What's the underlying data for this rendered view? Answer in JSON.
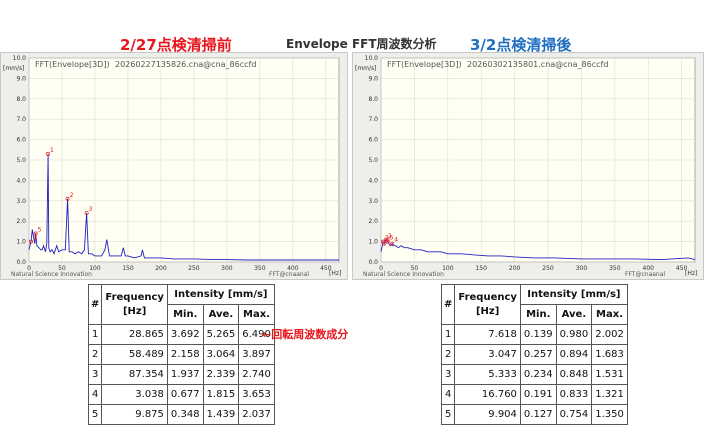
{
  "headings": {
    "left": "2/27点検清掃前",
    "center": "Envelope FFT周波数分析",
    "right": "3/2点検清掃後"
  },
  "note": "←回転周波数成分",
  "charts": {
    "left": {
      "title": "FFT(Envelope[3D])",
      "filename": "20260227135826.cna@cna_86ccfd",
      "yunit": "[mm/s]",
      "xunit": "[Hz]",
      "ylim": [
        0,
        10
      ],
      "xlim": [
        0,
        470
      ],
      "yticks": [
        "10.0",
        "9.0",
        "8.0",
        "7.0",
        "6.0",
        "5.0",
        "4.0",
        "3.0",
        "2.0",
        "1.0",
        "0.0"
      ],
      "xticks": [
        "0",
        "50",
        "100",
        "150",
        "200",
        "250",
        "300",
        "350",
        "400",
        "450"
      ],
      "footer_left": "Natural Science Innovation",
      "footer_right": "FFT@cnaanal",
      "peak_labels": [
        "1",
        "2",
        "3",
        "4",
        "5"
      ]
    },
    "right": {
      "title": "FFT(Envelope[3D])",
      "filename": "20260302135801.cna@cna_86ccfd",
      "yunit": "[mm/s]",
      "xunit": "[Hz]",
      "ylim": [
        0,
        10
      ],
      "xlim": [
        0,
        470
      ],
      "yticks": [
        "10.0",
        "9.0",
        "8.0",
        "7.0",
        "6.0",
        "5.0",
        "4.0",
        "3.0",
        "2.0",
        "1.0",
        "0.0"
      ],
      "xticks": [
        "0",
        "50",
        "100",
        "150",
        "200",
        "250",
        "300",
        "350",
        "400",
        "450"
      ],
      "footer_left": "Natural Science Innovation",
      "footer_right": "FFT@cnaanal",
      "peak_labels": [
        "1",
        "2",
        "3",
        "4",
        "5"
      ]
    }
  },
  "chart_data": [
    {
      "type": "line",
      "title": "FFT(Envelope[3D])",
      "xlabel": "[Hz]",
      "ylabel": "[mm/s]",
      "xlim": [
        0,
        470
      ],
      "ylim": [
        0,
        10
      ],
      "series": [
        {
          "x": [
            0,
            3,
            5,
            7,
            9,
            10,
            12,
            15,
            18,
            20,
            22,
            25,
            27,
            28.9,
            30,
            32,
            35,
            38,
            42,
            45,
            50,
            55,
            58.5,
            61,
            65,
            70,
            75,
            80,
            84,
            87.4,
            90,
            95,
            100,
            105,
            110,
            115,
            118,
            122,
            130,
            140,
            143,
            146,
            150,
            160,
            170,
            172,
            175,
            180,
            200,
            220,
            250,
            280,
            300,
            330,
            360,
            400,
            440,
            470
          ],
          "y": [
            0.6,
            1.0,
            1.6,
            1.2,
            0.9,
            1.4,
            0.8,
            0.7,
            0.6,
            0.6,
            0.8,
            0.5,
            0.9,
            5.3,
            0.7,
            0.5,
            0.6,
            0.4,
            0.8,
            0.5,
            0.6,
            0.6,
            3.1,
            0.5,
            0.5,
            0.4,
            0.5,
            0.4,
            0.6,
            2.4,
            0.4,
            0.4,
            0.3,
            0.3,
            0.3,
            0.6,
            1.1,
            0.3,
            0.3,
            0.3,
            0.7,
            0.3,
            0.3,
            0.2,
            0.3,
            0.6,
            0.2,
            0.2,
            0.2,
            0.15,
            0.15,
            0.12,
            0.12,
            0.1,
            0.1,
            0.1,
            0.1,
            0.1
          ]
        }
      ]
    },
    {
      "type": "line",
      "title": "FFT(Envelope[3D])",
      "xlabel": "[Hz]",
      "ylabel": "[mm/s]",
      "xlim": [
        0,
        470
      ],
      "ylim": [
        0,
        10
      ],
      "series": [
        {
          "x": [
            0,
            2,
            3,
            5,
            7.6,
            9.9,
            12,
            14,
            16.8,
            18,
            22,
            26,
            30,
            35,
            40,
            50,
            60,
            70,
            80,
            90,
            100,
            120,
            140,
            160,
            180,
            200,
            230,
            260,
            300,
            340,
            380,
            420,
            460,
            470
          ],
          "y": [
            0.5,
            0.8,
            1.0,
            0.9,
            1.1,
            1.0,
            0.9,
            0.8,
            0.9,
            0.8,
            0.8,
            0.7,
            0.8,
            0.7,
            0.7,
            0.6,
            0.6,
            0.5,
            0.5,
            0.5,
            0.4,
            0.4,
            0.35,
            0.3,
            0.3,
            0.25,
            0.2,
            0.2,
            0.15,
            0.15,
            0.15,
            0.12,
            0.2,
            0.12
          ]
        }
      ]
    }
  ],
  "tables": {
    "left": {
      "head_idx": "#",
      "head_freq": "Frequency",
      "head_freq_unit": "[Hz]",
      "head_intensity": "Intensity [mm/s]",
      "head_min": "Min.",
      "head_ave": "Ave.",
      "head_max": "Max.",
      "rows": [
        [
          "1",
          "28.865",
          "3.692",
          "5.265",
          "6.490"
        ],
        [
          "2",
          "58.489",
          "2.158",
          "3.064",
          "3.897"
        ],
        [
          "3",
          "87.354",
          "1.937",
          "2.339",
          "2.740"
        ],
        [
          "4",
          "3.038",
          "0.677",
          "1.815",
          "3.653"
        ],
        [
          "5",
          "9.875",
          "0.348",
          "1.439",
          "2.037"
        ]
      ]
    },
    "right": {
      "head_idx": "#",
      "head_freq": "Frequency",
      "head_freq_unit": "[Hz]",
      "head_intensity": "Intensity [mm/s]",
      "head_min": "Min.",
      "head_ave": "Ave.",
      "head_max": "Max.",
      "rows": [
        [
          "1",
          "7.618",
          "0.139",
          "0.980",
          "2.002"
        ],
        [
          "2",
          "3.047",
          "0.257",
          "0.894",
          "1.683"
        ],
        [
          "3",
          "5.333",
          "0.234",
          "0.848",
          "1.531"
        ],
        [
          "4",
          "16.760",
          "0.191",
          "0.833",
          "1.321"
        ],
        [
          "5",
          "9.904",
          "0.127",
          "0.754",
          "1.350"
        ]
      ]
    }
  }
}
